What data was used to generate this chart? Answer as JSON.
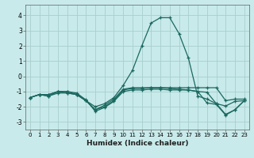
{
  "title": "",
  "xlabel": "Humidex (Indice chaleur)",
  "background_color": "#c8eaea",
  "grid_color": "#a8cece",
  "line_color": "#1a6860",
  "xlim": [
    -0.5,
    23.5
  ],
  "ylim": [
    -3.5,
    4.7
  ],
  "yticks": [
    -3,
    -2,
    -1,
    0,
    1,
    2,
    3,
    4
  ],
  "xticks": [
    0,
    1,
    2,
    3,
    4,
    5,
    6,
    7,
    8,
    9,
    10,
    11,
    12,
    13,
    14,
    15,
    16,
    17,
    18,
    19,
    20,
    21,
    22,
    23
  ],
  "series": [
    {
      "x": [
        0,
        1,
        2,
        3,
        4,
        5,
        6,
        7,
        8,
        9,
        10,
        11,
        12,
        13,
        14,
        15,
        16,
        17,
        18,
        19,
        20,
        21,
        22,
        23
      ],
      "y": [
        -1.4,
        -1.2,
        -1.3,
        -1.1,
        -1.1,
        -1.2,
        -1.6,
        -2.2,
        -1.9,
        -1.5,
        -0.85,
        -0.75,
        -0.75,
        -0.75,
        -0.75,
        -0.75,
        -0.75,
        -0.75,
        -0.75,
        -0.75,
        -0.75,
        -1.6,
        -1.5,
        -1.5
      ]
    },
    {
      "x": [
        0,
        1,
        2,
        3,
        4,
        5,
        6,
        7,
        8,
        9,
        10,
        11,
        12,
        13,
        14,
        15,
        16,
        17,
        18,
        19,
        20,
        21,
        22,
        23
      ],
      "y": [
        -1.4,
        -1.2,
        -1.2,
        -1.0,
        -1.0,
        -1.1,
        -1.55,
        -2.3,
        -2.05,
        -1.65,
        -1.0,
        -0.9,
        -0.9,
        -0.85,
        -0.85,
        -0.9,
        -0.9,
        -0.9,
        -1.0,
        -1.75,
        -1.85,
        -2.55,
        -2.2,
        -1.6
      ]
    },
    {
      "x": [
        0,
        1,
        2,
        3,
        4,
        5,
        6,
        7,
        8,
        9,
        10,
        11,
        12,
        13,
        14,
        15,
        16,
        17,
        18,
        19,
        20,
        21,
        22,
        23
      ],
      "y": [
        -1.4,
        -1.2,
        -1.2,
        -1.0,
        -1.1,
        -1.2,
        -1.6,
        -2.2,
        -2.0,
        -1.6,
        -0.9,
        -0.8,
        -0.8,
        -0.75,
        -0.75,
        -0.8,
        -0.85,
        -0.9,
        -1.0,
        -1.05,
        -1.8,
        -1.95,
        -1.65,
        -1.6
      ]
    },
    {
      "x": [
        0,
        1,
        2,
        3,
        4,
        5,
        6,
        7,
        8,
        9,
        10,
        11,
        12,
        13,
        14,
        15,
        16,
        17,
        18,
        19,
        20,
        21,
        22,
        23
      ],
      "y": [
        -1.4,
        -1.2,
        -1.3,
        -1.0,
        -1.0,
        -1.2,
        -1.6,
        -2.0,
        -1.8,
        -1.4,
        -0.6,
        0.4,
        2.0,
        3.5,
        3.85,
        3.85,
        2.8,
        1.2,
        -1.3,
        -1.5,
        -1.8,
        -2.5,
        -2.2,
        -1.6
      ]
    }
  ]
}
